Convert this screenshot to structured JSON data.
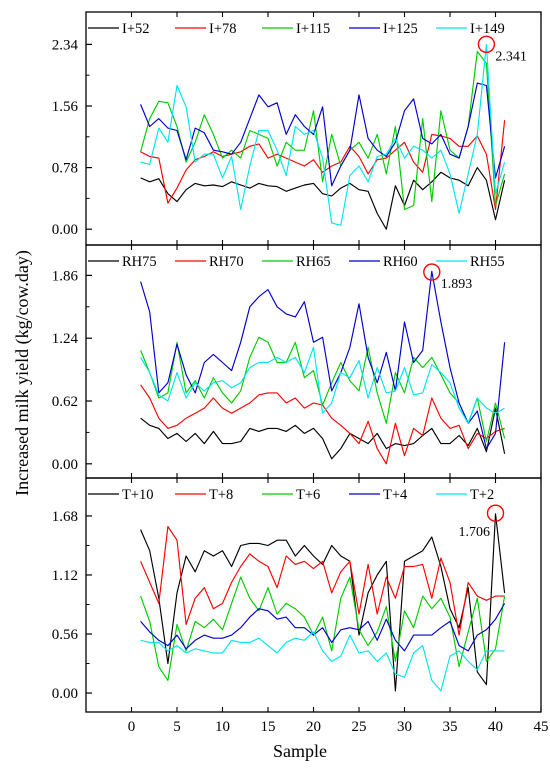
{
  "chart_data": {
    "type": "line",
    "ylabel": "Increased milk yield (kg/cow.day)",
    "xlabel": "Sample",
    "xlim": [
      -5,
      45
    ],
    "xticks": [
      0,
      5,
      10,
      15,
      20,
      25,
      30,
      35,
      40,
      45
    ],
    "panels": [
      {
        "ylim": [
          -0.2,
          2.75
        ],
        "yticks": [
          0.0,
          0.78,
          1.56,
          2.34
        ],
        "ytick_labels": [
          "0.00",
          "0.78",
          "1.56",
          "2.34"
        ],
        "annotation": {
          "x": 39,
          "y": 2.341,
          "text": "2.341"
        },
        "series": [
          {
            "name": "I+52",
            "color": "#000000",
            "values": [
              0.65,
              0.6,
              0.64,
              0.45,
              0.35,
              0.5,
              0.58,
              0.55,
              0.56,
              0.54,
              0.6,
              0.56,
              0.52,
              0.58,
              0.55,
              0.54,
              0.48,
              0.52,
              0.56,
              0.58,
              0.45,
              0.42,
              0.52,
              0.58,
              0.5,
              0.48,
              0.2,
              0.0,
              0.55,
              0.3,
              0.62,
              0.5,
              0.6,
              0.72,
              0.65,
              0.62,
              0.55,
              0.78,
              0.62,
              0.12,
              0.62
            ]
          },
          {
            "name": "I+78",
            "color": "#ff0000",
            "values": [
              0.98,
              0.92,
              0.9,
              0.33,
              0.52,
              0.75,
              0.88,
              0.92,
              0.98,
              0.92,
              0.95,
              0.98,
              1.05,
              1.08,
              0.9,
              0.95,
              0.9,
              0.85,
              0.8,
              0.88,
              0.72,
              0.8,
              0.85,
              1.05,
              0.92,
              0.7,
              0.88,
              0.9,
              1.0,
              1.1,
              0.85,
              0.72,
              1.2,
              1.18,
              1.15,
              1.05,
              1.05,
              1.18,
              0.95,
              0.25,
              1.38
            ]
          },
          {
            "name": "I+115",
            "color": "#00cc00",
            "values": [
              0.98,
              1.4,
              1.62,
              1.6,
              1.3,
              0.85,
              1.1,
              1.45,
              1.2,
              0.9,
              1.0,
              0.9,
              1.25,
              1.2,
              1.15,
              0.8,
              1.1,
              1.0,
              1.0,
              1.5,
              0.6,
              1.2,
              0.8,
              1.0,
              1.1,
              0.9,
              1.2,
              0.7,
              1.3,
              0.25,
              0.3,
              1.4,
              0.35,
              1.5,
              1.0,
              0.9,
              1.3,
              2.25,
              2.1,
              0.3,
              0.7
            ]
          },
          {
            "name": "I+125",
            "color": "#0000cc",
            "values": [
              1.58,
              1.3,
              1.4,
              1.28,
              1.25,
              0.88,
              1.28,
              1.22,
              1.0,
              0.98,
              0.95,
              1.1,
              1.4,
              1.7,
              1.55,
              1.6,
              1.2,
              1.45,
              1.3,
              1.2,
              1.55,
              0.55,
              0.8,
              1.0,
              1.7,
              1.15,
              1.0,
              0.92,
              1.1,
              1.5,
              1.65,
              1.15,
              1.08,
              1.2,
              0.95,
              0.9,
              1.3,
              1.85,
              1.82,
              0.65,
              1.05
            ]
          },
          {
            "name": "I+149",
            "color": "#00e5ee",
            "values": [
              0.85,
              0.82,
              1.28,
              1.1,
              1.82,
              1.55,
              0.85,
              0.95,
              0.95,
              0.65,
              0.92,
              0.25,
              0.8,
              1.25,
              1.25,
              1.0,
              0.68,
              1.3,
              1.2,
              1.25,
              0.9,
              0.08,
              0.05,
              0.68,
              0.8,
              0.6,
              0.92,
              0.95,
              1.15,
              0.9,
              1.05,
              1.0,
              0.9,
              1.0,
              0.7,
              0.2,
              0.7,
              1.2,
              2.34,
              0.45,
              0.85
            ]
          }
        ]
      },
      {
        "ylim": [
          -0.14,
          2.16
        ],
        "yticks": [
          0.0,
          0.62,
          1.24,
          1.86
        ],
        "ytick_labels": [
          "0.00",
          "0.62",
          "1.24",
          "1.86"
        ],
        "annotation": {
          "x": 33,
          "y": 1.893,
          "text": "1.893"
        },
        "series": [
          {
            "name": "RH75",
            "color": "#000000",
            "values": [
              0.45,
              0.38,
              0.35,
              0.25,
              0.3,
              0.22,
              0.3,
              0.2,
              0.32,
              0.2,
              0.2,
              0.22,
              0.35,
              0.32,
              0.35,
              0.35,
              0.32,
              0.38,
              0.3,
              0.35,
              0.25,
              0.05,
              0.15,
              0.3,
              0.25,
              0.2,
              0.3,
              0.15,
              0.2,
              0.18,
              0.2,
              0.28,
              0.35,
              0.2,
              0.2,
              0.28,
              0.18,
              0.35,
              0.12,
              0.55,
              0.1
            ]
          },
          {
            "name": "RH70",
            "color": "#ff0000",
            "values": [
              0.78,
              0.65,
              0.45,
              0.35,
              0.38,
              0.45,
              0.5,
              0.55,
              0.65,
              0.55,
              0.5,
              0.55,
              0.6,
              0.68,
              0.7,
              0.7,
              0.6,
              0.65,
              0.55,
              0.6,
              0.58,
              0.45,
              0.38,
              0.3,
              0.2,
              0.42,
              0.15,
              0.0,
              0.4,
              0.08,
              0.35,
              0.28,
              0.65,
              0.45,
              0.35,
              0.38,
              0.15,
              0.3,
              0.25,
              0.32,
              0.35
            ]
          },
          {
            "name": "RH65",
            "color": "#00cc00",
            "values": [
              1.12,
              0.9,
              0.65,
              0.7,
              1.2,
              0.7,
              0.82,
              0.65,
              0.85,
              0.7,
              0.6,
              0.72,
              1.05,
              1.25,
              1.2,
              1.0,
              1.0,
              1.2,
              0.85,
              0.92,
              0.58,
              0.8,
              1.0,
              0.82,
              0.72,
              1.15,
              0.7,
              0.4,
              0.9,
              0.7,
              1.05,
              0.95,
              1.05,
              0.88,
              0.7,
              0.6,
              0.4,
              0.65,
              0.22,
              0.6,
              0.25
            ]
          },
          {
            "name": "RH60",
            "color": "#0000cc",
            "values": [
              1.8,
              1.5,
              0.7,
              0.8,
              1.18,
              0.88,
              0.7,
              1.0,
              1.08,
              1.0,
              0.92,
              1.2,
              1.55,
              1.65,
              1.72,
              1.55,
              1.48,
              1.45,
              1.6,
              1.2,
              1.25,
              0.72,
              0.9,
              1.15,
              1.58,
              1.05,
              0.8,
              1.1,
              0.72,
              1.4,
              1.0,
              1.12,
              1.9,
              1.4,
              0.95,
              0.6,
              0.4,
              0.52,
              0.15,
              0.3,
              1.2
            ]
          },
          {
            "name": "RH55",
            "color": "#00e5ee",
            "values": [
              1.05,
              0.9,
              0.68,
              0.62,
              0.9,
              0.65,
              0.8,
              0.72,
              0.8,
              0.82,
              0.75,
              0.8,
              0.95,
              1.0,
              1.0,
              1.05,
              1.0,
              1.05,
              0.9,
              1.15,
              0.5,
              0.6,
              0.9,
              0.85,
              1.02,
              0.65,
              0.95,
              0.7,
              0.72,
              0.95,
              0.68,
              0.7,
              0.98,
              0.9,
              0.8,
              0.55,
              0.4,
              0.65,
              0.55,
              0.5,
              0.55
            ]
          }
        ]
      },
      {
        "ylim": [
          -0.18,
          2.04
        ],
        "yticks": [
          0.0,
          0.56,
          1.12,
          1.68
        ],
        "ytick_labels": [
          "0.00",
          "0.56",
          "1.12",
          "1.68"
        ],
        "annotation": {
          "x": 40,
          "y": 1.706,
          "text": "1.706"
        },
        "series": [
          {
            "name": "T+10",
            "color": "#000000",
            "values": [
              1.55,
              1.35,
              0.9,
              0.28,
              0.95,
              1.3,
              1.15,
              1.35,
              1.3,
              1.35,
              1.2,
              1.4,
              1.42,
              1.42,
              1.4,
              1.45,
              1.45,
              1.3,
              1.4,
              1.3,
              1.22,
              1.4,
              1.3,
              1.25,
              0.55,
              0.95,
              1.12,
              1.25,
              0.02,
              1.25,
              1.3,
              1.35,
              1.48,
              1.2,
              0.8,
              0.62,
              1.0,
              0.2,
              0.08,
              1.7,
              0.95
            ]
          },
          {
            "name": "T+8",
            "color": "#ff0000",
            "values": [
              1.25,
              1.05,
              0.85,
              1.58,
              1.45,
              0.65,
              0.9,
              1.0,
              0.8,
              0.85,
              1.05,
              1.2,
              1.32,
              1.25,
              1.2,
              1.0,
              1.3,
              1.22,
              1.25,
              1.18,
              1.25,
              0.95,
              1.15,
              1.25,
              0.75,
              1.22,
              0.75,
              1.1,
              0.9,
              1.2,
              1.2,
              1.22,
              0.9,
              1.28,
              1.05,
              0.55,
              1.05,
              0.92,
              0.88,
              0.92,
              0.92
            ]
          },
          {
            "name": "T+6",
            "color": "#00cc00",
            "values": [
              0.92,
              0.68,
              0.25,
              0.12,
              0.65,
              0.4,
              0.68,
              0.62,
              0.7,
              0.6,
              0.85,
              1.1,
              0.9,
              0.78,
              1.0,
              0.75,
              0.85,
              0.8,
              0.72,
              0.55,
              0.72,
              0.4,
              0.9,
              1.1,
              0.6,
              0.45,
              0.58,
              0.82,
              0.3,
              0.78,
              0.62,
              0.92,
              0.8,
              0.9,
              0.72,
              0.25,
              0.58,
              0.9,
              0.3,
              0.42,
              0.92
            ]
          },
          {
            "name": "T+4",
            "color": "#0000cc",
            "values": [
              0.68,
              0.58,
              0.5,
              0.45,
              0.55,
              0.42,
              0.5,
              0.55,
              0.52,
              0.52,
              0.55,
              0.62,
              0.72,
              0.8,
              0.78,
              0.7,
              0.72,
              0.62,
              0.62,
              0.55,
              0.62,
              0.48,
              0.6,
              0.62,
              0.6,
              0.68,
              0.5,
              0.7,
              0.5,
              0.4,
              0.55,
              0.55,
              0.55,
              0.62,
              0.68,
              0.45,
              0.4,
              0.55,
              0.6,
              0.7,
              0.85
            ]
          },
          {
            "name": "T+2",
            "color": "#00e5ee",
            "values": [
              0.5,
              0.48,
              0.48,
              0.4,
              0.45,
              0.38,
              0.42,
              0.4,
              0.38,
              0.38,
              0.5,
              0.48,
              0.48,
              0.52,
              0.45,
              0.38,
              0.48,
              0.52,
              0.5,
              0.58,
              0.4,
              0.3,
              0.35,
              0.55,
              0.38,
              0.4,
              0.3,
              0.38,
              0.18,
              0.15,
              0.38,
              0.45,
              0.12,
              0.02,
              0.35,
              0.4,
              0.3,
              0.22,
              0.4,
              0.4,
              0.4
            ]
          }
        ]
      }
    ]
  }
}
